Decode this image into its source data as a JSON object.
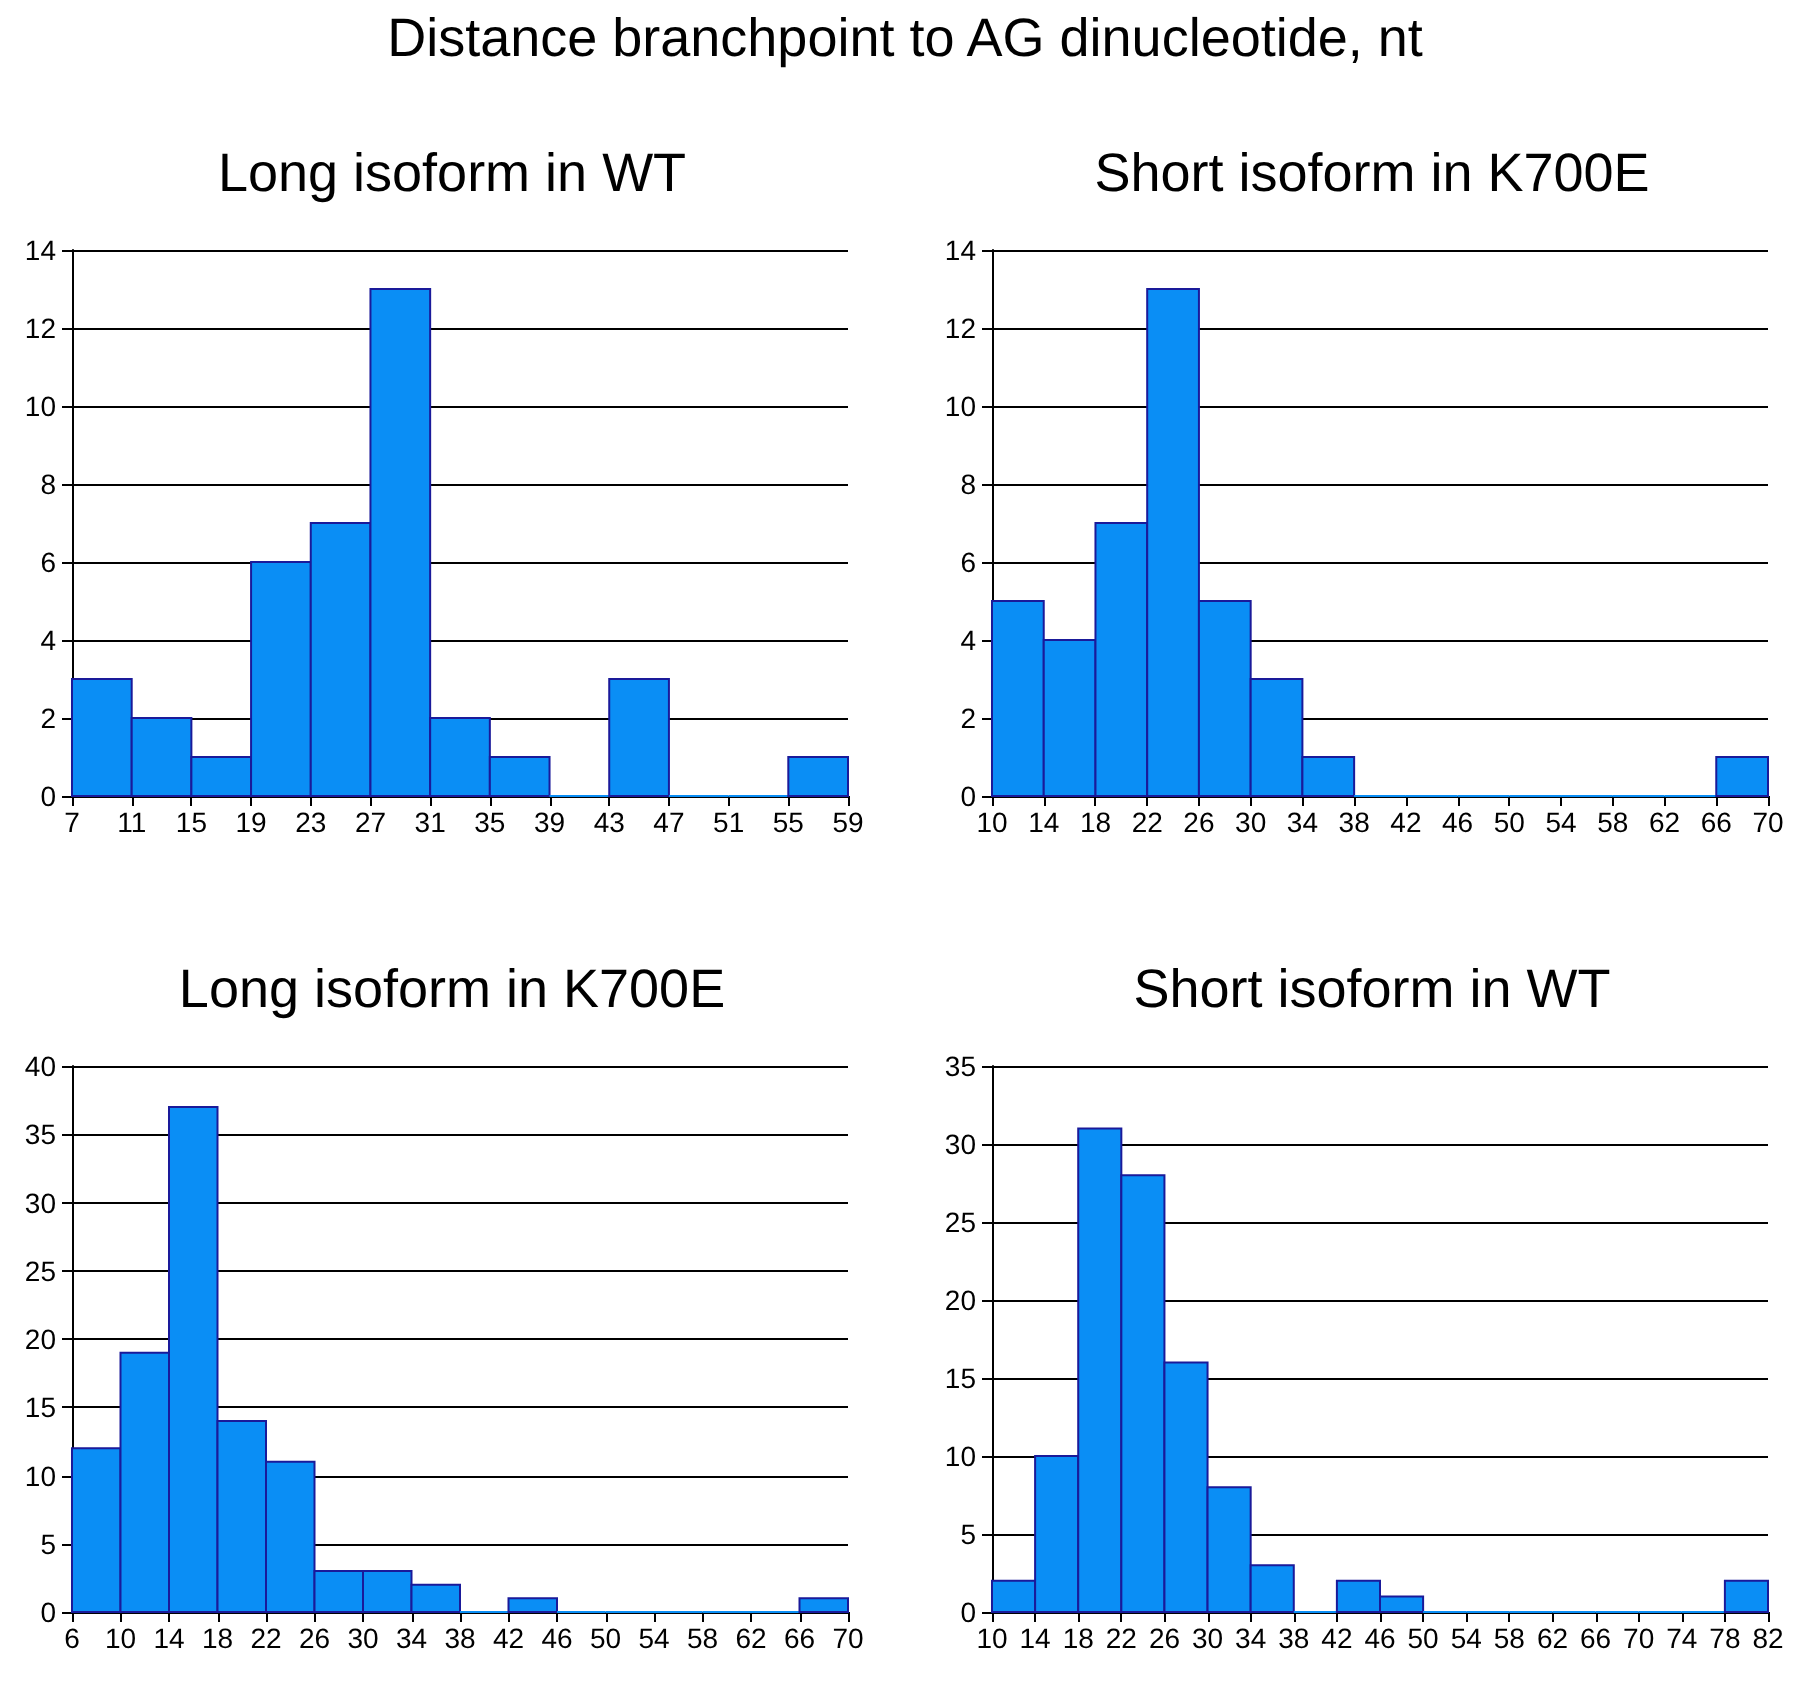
{
  "chart_data": [
    {
      "type": "histogram",
      "title": "Long isoform in WT",
      "annotations": [
        "Distance branchpoint to AG dinucleotide, nt"
      ],
      "bins": [
        7,
        11,
        15,
        19,
        23,
        27,
        31,
        35,
        39,
        43,
        47,
        51,
        55,
        59
      ],
      "values": [
        3,
        2,
        1,
        6,
        7,
        13,
        2,
        1,
        0,
        3,
        0,
        0,
        1
      ],
      "color": "#0a8ef5",
      "xlim": [
        7,
        59
      ],
      "xticks": [
        7,
        11,
        15,
        19,
        23,
        27,
        31,
        35,
        39,
        43,
        47,
        51,
        55,
        59
      ],
      "ylim": [
        0,
        14
      ],
      "yticks": [
        0,
        2,
        4,
        6,
        8,
        10,
        12,
        14
      ],
      "grid": "y"
    },
    {
      "type": "histogram",
      "title": "Short isoform in K700E",
      "bins": [
        10,
        14,
        18,
        22,
        26,
        30,
        34,
        38,
        42,
        46,
        50,
        54,
        58,
        62,
        66,
        70
      ],
      "values": [
        5,
        4,
        7,
        13,
        5,
        3,
        1,
        0,
        0,
        0,
        0,
        0,
        0,
        0,
        1
      ],
      "color": "#0a8ef5",
      "xlim": [
        10,
        70
      ],
      "xticks": [
        10,
        14,
        18,
        22,
        26,
        30,
        34,
        38,
        42,
        46,
        50,
        54,
        58,
        62,
        66,
        70
      ],
      "ylim": [
        0,
        14
      ],
      "yticks": [
        0,
        2,
        4,
        6,
        8,
        10,
        12,
        14
      ],
      "grid": "y"
    },
    {
      "type": "histogram",
      "title": "Long isoform in K700E",
      "bins": [
        6,
        10,
        14,
        18,
        22,
        26,
        30,
        34,
        38,
        42,
        46,
        50,
        54,
        58,
        62,
        66,
        70
      ],
      "values": [
        12,
        19,
        37,
        14,
        11,
        3,
        3,
        2,
        0,
        1,
        0,
        0,
        0,
        0,
        0,
        1
      ],
      "color": "#0a8ef5",
      "xlim": [
        6,
        70
      ],
      "xticks": [
        6,
        10,
        14,
        18,
        22,
        26,
        30,
        34,
        38,
        42,
        46,
        50,
        54,
        58,
        62,
        66,
        70
      ],
      "ylim": [
        0,
        40
      ],
      "yticks": [
        0,
        5,
        10,
        15,
        20,
        25,
        30,
        35,
        40
      ],
      "grid": "y"
    },
    {
      "type": "histogram",
      "title": "Short isoform in WT",
      "bins": [
        10,
        14,
        18,
        22,
        26,
        30,
        34,
        38,
        42,
        46,
        50,
        54,
        58,
        62,
        66,
        70,
        74,
        78,
        82
      ],
      "values": [
        2,
        10,
        31,
        28,
        16,
        8,
        3,
        0,
        2,
        1,
        0,
        0,
        0,
        0,
        0,
        0,
        0,
        2
      ],
      "color": "#0a8ef5",
      "xlim": [
        10,
        82
      ],
      "xticks": [
        10,
        14,
        18,
        22,
        26,
        30,
        34,
        38,
        42,
        46,
        50,
        54,
        58,
        62,
        66,
        70,
        74,
        78,
        82
      ],
      "ylim": [
        0,
        35
      ],
      "yticks": [
        0,
        5,
        10,
        15,
        20,
        25,
        30,
        35
      ],
      "grid": "y"
    }
  ]
}
